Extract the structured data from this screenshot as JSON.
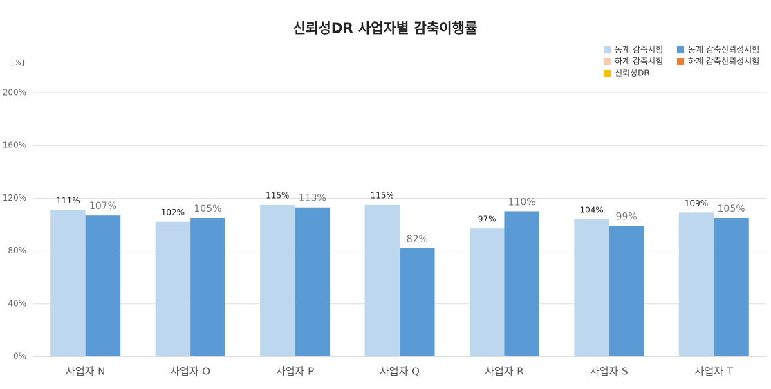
{
  "chart_data": {
    "type": "bar",
    "title": "신뢰성DR 사업자별 감축이행률",
    "y_label": "[%]",
    "categories": [
      "사업자 N",
      "사업자 O",
      "사업자 P",
      "사업자 Q",
      "사업자 R",
      "사업자 S",
      "사업자 T"
    ],
    "series": [
      {
        "name": "동계 감축시험",
        "color": "#bdd7ee",
        "values": [
          111,
          102,
          115,
          115,
          97,
          104,
          109
        ],
        "value_labels": [
          "111%",
          "102%",
          "115%",
          "115%",
          "97%",
          "104%",
          "109%"
        ]
      },
      {
        "name": "동계 감축신뢰성시험",
        "color": "#5b9bd5",
        "values": [
          107,
          105,
          113,
          82,
          110,
          99,
          105
        ],
        "value_labels": [
          "107%",
          "105%",
          "113%",
          "82%",
          "110%",
          "99%",
          "105%"
        ]
      },
      {
        "name": "하계 감축시험",
        "color": "#f8cbad",
        "values": [
          null,
          null,
          null,
          null,
          null,
          null,
          null
        ]
      },
      {
        "name": "하계 감축신뢰성시험",
        "color": "#ed7d31",
        "values": [
          null,
          null,
          null,
          null,
          null,
          null,
          null
        ]
      },
      {
        "name": "신뢰성DR",
        "color": "#ffc000",
        "values": [
          null,
          null,
          null,
          null,
          null,
          null,
          null
        ]
      }
    ],
    "ylim": [
      0,
      200
    ],
    "yticks": [
      {
        "value": 0,
        "label": "0%"
      },
      {
        "value": 40,
        "label": "40%"
      },
      {
        "value": 80,
        "label": "80%"
      },
      {
        "value": 120,
        "label": "120%"
      },
      {
        "value": 160,
        "label": "160%"
      },
      {
        "value": 200,
        "label": "200%"
      }
    ],
    "grid": true,
    "legend": "top-right"
  }
}
